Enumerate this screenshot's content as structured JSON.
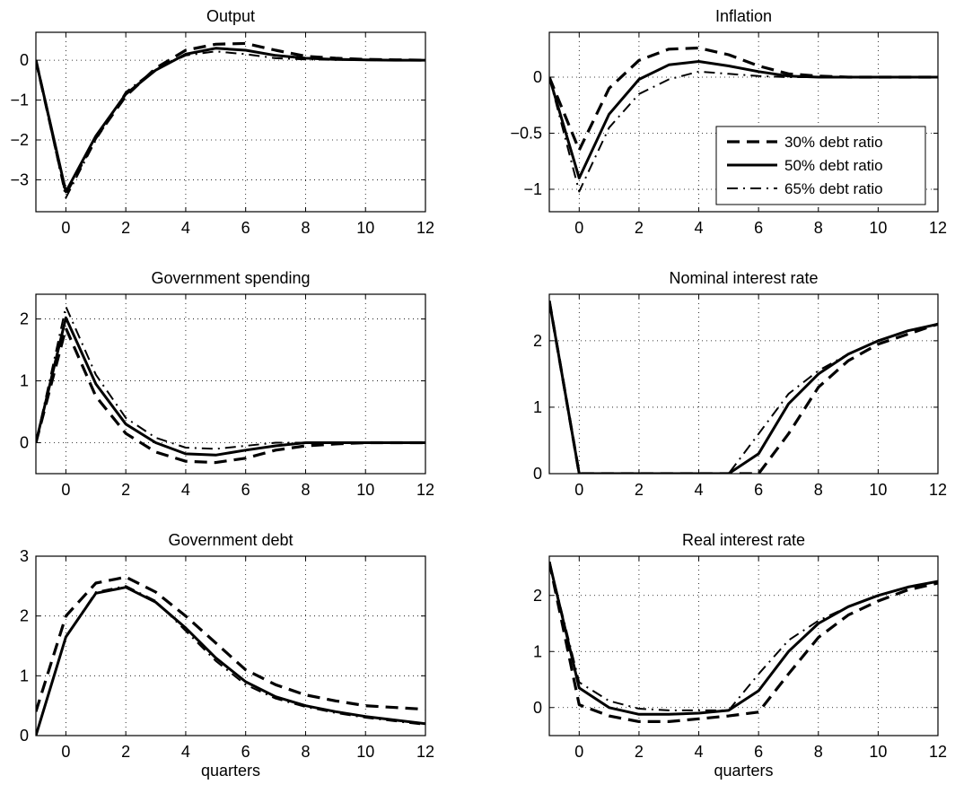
{
  "chart_data": [
    {
      "type": "line",
      "title": "Output",
      "xlabel": "",
      "xlim": [
        -1,
        12
      ],
      "ylim": [
        -3.8,
        0.7
      ],
      "xticks": [
        0,
        2,
        4,
        6,
        8,
        10,
        12
      ],
      "xtick_labels": [
        "0",
        "2",
        "4",
        "6",
        "8",
        "10",
        "12"
      ],
      "yticks": [
        0,
        -1,
        -2,
        -3
      ],
      "ytick_labels": [
        "0",
        "−1",
        "−2",
        "−3"
      ],
      "grid": true,
      "x": [
        -1,
        0,
        1,
        2,
        3,
        4,
        5,
        6,
        7,
        8,
        9,
        10,
        11,
        12
      ],
      "series": [
        {
          "name": "30% debt ratio",
          "style": "dashed",
          "values": [
            0,
            -3.35,
            -1.95,
            -0.9,
            -0.2,
            0.25,
            0.4,
            0.42,
            0.25,
            0.1,
            0.05,
            0.02,
            0.01,
            0.0
          ]
        },
        {
          "name": "50% debt ratio",
          "style": "solid",
          "values": [
            0,
            -3.3,
            -1.9,
            -0.85,
            -0.25,
            0.15,
            0.3,
            0.25,
            0.12,
            0.05,
            0.02,
            0.01,
            0.0,
            0.0
          ]
        },
        {
          "name": "65% debt ratio",
          "style": "dashdot",
          "values": [
            0,
            -3.45,
            -2.0,
            -0.8,
            -0.22,
            0.12,
            0.22,
            0.15,
            0.05,
            0.02,
            0.01,
            0.0,
            0.0,
            0.0
          ]
        }
      ]
    },
    {
      "type": "line",
      "title": "Inflation",
      "xlabel": "",
      "xlim": [
        -1,
        12
      ],
      "ylim": [
        -1.2,
        0.4
      ],
      "xticks": [
        0,
        2,
        4,
        6,
        8,
        10,
        12
      ],
      "xtick_labels": [
        "0",
        "2",
        "4",
        "6",
        "8",
        "10",
        "12"
      ],
      "yticks": [
        0,
        -0.5,
        -1
      ],
      "ytick_labels": [
        "0",
        "−0.5",
        "−1"
      ],
      "grid": true,
      "legend": {
        "position": "right",
        "entries": [
          "30% debt ratio",
          "50% debt ratio",
          "65% debt ratio"
        ]
      },
      "x": [
        -1,
        0,
        1,
        2,
        3,
        4,
        5,
        6,
        7,
        8,
        9,
        10,
        11,
        12
      ],
      "series": [
        {
          "name": "30% debt ratio",
          "style": "dashed",
          "values": [
            0,
            -0.65,
            -0.1,
            0.15,
            0.25,
            0.26,
            0.2,
            0.1,
            0.03,
            0.01,
            0.0,
            0.0,
            0.0,
            0.0
          ]
        },
        {
          "name": "50% debt ratio",
          "style": "solid",
          "values": [
            0,
            -0.9,
            -0.33,
            -0.02,
            0.11,
            0.14,
            0.1,
            0.05,
            0.01,
            0.0,
            0.0,
            0.0,
            0.0,
            0.0
          ]
        },
        {
          "name": "65% debt ratio",
          "style": "dashdot",
          "values": [
            0,
            -1.02,
            -0.45,
            -0.15,
            -0.02,
            0.05,
            0.03,
            0.01,
            0.0,
            0.0,
            0.0,
            0.0,
            0.0,
            0.0
          ]
        }
      ]
    },
    {
      "type": "line",
      "title": "Government spending",
      "xlabel": "",
      "xlim": [
        -1,
        12
      ],
      "ylim": [
        -0.5,
        2.4
      ],
      "xticks": [
        0,
        2,
        4,
        6,
        8,
        10,
        12
      ],
      "xtick_labels": [
        "0",
        "2",
        "4",
        "6",
        "8",
        "10",
        "12"
      ],
      "yticks": [
        0,
        1,
        2
      ],
      "ytick_labels": [
        "0",
        "1",
        "2"
      ],
      "grid": true,
      "x": [
        -1,
        0,
        1,
        2,
        3,
        4,
        5,
        6,
        7,
        8,
        9,
        10,
        11,
        12
      ],
      "series": [
        {
          "name": "30% debt ratio",
          "style": "dashed",
          "values": [
            0,
            1.85,
            0.75,
            0.15,
            -0.15,
            -0.3,
            -0.32,
            -0.25,
            -0.12,
            -0.05,
            -0.02,
            0.0,
            0.0,
            0.0
          ]
        },
        {
          "name": "50% debt ratio",
          "style": "solid",
          "values": [
            0,
            2.02,
            0.95,
            0.3,
            0.0,
            -0.18,
            -0.2,
            -0.12,
            -0.05,
            0.0,
            0.0,
            0.0,
            0.0,
            0.0
          ]
        },
        {
          "name": "65% debt ratio",
          "style": "dashdot",
          "values": [
            0,
            2.2,
            1.1,
            0.4,
            0.08,
            -0.08,
            -0.1,
            -0.05,
            0.0,
            0.0,
            0.0,
            0.0,
            0.0,
            0.0
          ]
        }
      ]
    },
    {
      "type": "line",
      "title": "Nominal interest rate",
      "xlabel": "",
      "xlim": [
        -1,
        12
      ],
      "ylim": [
        0,
        2.7
      ],
      "xticks": [
        0,
        2,
        4,
        6,
        8,
        10,
        12
      ],
      "xtick_labels": [
        "0",
        "2",
        "4",
        "6",
        "8",
        "10",
        "12"
      ],
      "yticks": [
        0,
        1,
        2
      ],
      "ytick_labels": [
        "0",
        "1",
        "2"
      ],
      "grid": true,
      "x": [
        -1,
        0,
        1,
        2,
        3,
        4,
        5,
        6,
        7,
        8,
        9,
        10,
        11,
        12
      ],
      "series": [
        {
          "name": "30% debt ratio",
          "style": "dashed",
          "values": [
            2.6,
            0,
            0,
            0,
            0,
            0,
            0,
            0.0,
            0.6,
            1.3,
            1.7,
            1.95,
            2.1,
            2.25
          ]
        },
        {
          "name": "50% debt ratio",
          "style": "solid",
          "values": [
            2.6,
            0,
            0,
            0,
            0,
            0,
            0,
            0.3,
            1.05,
            1.5,
            1.8,
            2.0,
            2.15,
            2.25
          ]
        },
        {
          "name": "65% debt ratio",
          "style": "dashdot",
          "values": [
            2.6,
            0,
            0,
            0,
            0,
            0,
            0.0,
            0.6,
            1.2,
            1.55,
            1.8,
            2.0,
            2.15,
            2.25
          ]
        }
      ]
    },
    {
      "type": "line",
      "title": "Government debt",
      "xlabel": "quarters",
      "xlim": [
        -1,
        12
      ],
      "ylim": [
        0,
        3
      ],
      "xticks": [
        0,
        2,
        4,
        6,
        8,
        10,
        12
      ],
      "xtick_labels": [
        "0",
        "2",
        "4",
        "6",
        "8",
        "10",
        "12"
      ],
      "yticks": [
        0,
        1,
        2,
        3
      ],
      "ytick_labels": [
        "0",
        "1",
        "2",
        "3"
      ],
      "grid": true,
      "x": [
        -1,
        0,
        1,
        2,
        3,
        4,
        5,
        6,
        7,
        8,
        9,
        10,
        11,
        12
      ],
      "series": [
        {
          "name": "30% debt ratio",
          "style": "dashed",
          "values": [
            0.4,
            2.0,
            2.55,
            2.65,
            2.4,
            2.0,
            1.55,
            1.1,
            0.85,
            0.68,
            0.58,
            0.5,
            0.47,
            0.44
          ]
        },
        {
          "name": "50% debt ratio",
          "style": "solid",
          "values": [
            0.0,
            1.65,
            2.38,
            2.48,
            2.23,
            1.8,
            1.3,
            0.9,
            0.65,
            0.5,
            0.4,
            0.32,
            0.26,
            0.2
          ]
        },
        {
          "name": "65% debt ratio",
          "style": "dashdot",
          "values": [
            0.0,
            1.65,
            2.4,
            2.5,
            2.25,
            1.75,
            1.25,
            0.85,
            0.62,
            0.48,
            0.38,
            0.3,
            0.24,
            0.18
          ]
        }
      ]
    },
    {
      "type": "line",
      "title": "Real interest rate",
      "xlabel": "quarters",
      "xlim": [
        -1,
        12
      ],
      "ylim": [
        -0.5,
        2.7
      ],
      "xticks": [
        0,
        2,
        4,
        6,
        8,
        10,
        12
      ],
      "xtick_labels": [
        "0",
        "2",
        "4",
        "6",
        "8",
        "10",
        "12"
      ],
      "yticks": [
        0,
        1,
        2
      ],
      "ytick_labels": [
        "0",
        "1",
        "2"
      ],
      "grid": true,
      "x": [
        -1,
        0,
        1,
        2,
        3,
        4,
        5,
        6,
        7,
        8,
        9,
        10,
        11,
        12
      ],
      "series": [
        {
          "name": "30% debt ratio",
          "style": "dashed",
          "values": [
            2.6,
            0.05,
            -0.15,
            -0.25,
            -0.25,
            -0.2,
            -0.15,
            -0.08,
            0.6,
            1.25,
            1.65,
            1.9,
            2.1,
            2.22
          ]
        },
        {
          "name": "50% debt ratio",
          "style": "solid",
          "values": [
            2.6,
            0.35,
            0.0,
            -0.12,
            -0.12,
            -0.1,
            -0.05,
            0.3,
            1.0,
            1.5,
            1.8,
            2.0,
            2.15,
            2.25
          ]
        },
        {
          "name": "65% debt ratio",
          "style": "dashdot",
          "values": [
            2.6,
            0.45,
            0.12,
            -0.02,
            -0.05,
            -0.05,
            -0.05,
            0.6,
            1.2,
            1.55,
            1.8,
            2.0,
            2.15,
            2.25
          ]
        }
      ]
    }
  ]
}
